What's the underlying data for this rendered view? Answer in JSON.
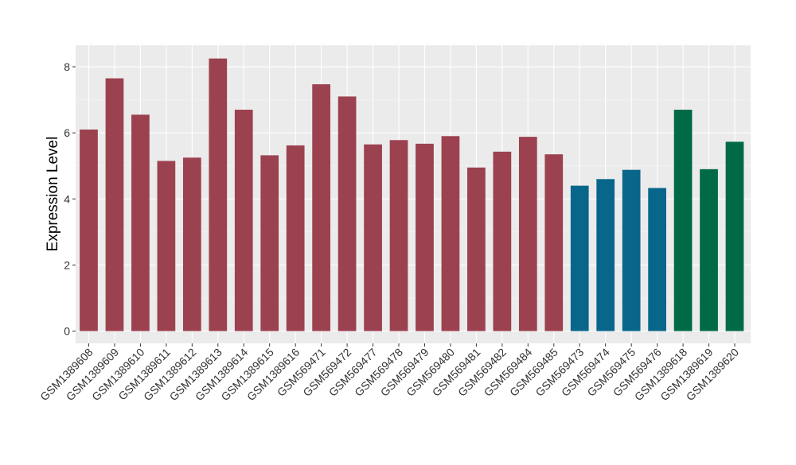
{
  "chart_data": {
    "type": "bar",
    "title": "",
    "xlabel": "",
    "ylabel": "Expression Level",
    "ylim": [
      0,
      8.6
    ],
    "yticks": [
      0,
      2,
      4,
      6,
      8
    ],
    "grid": true,
    "legend": "none",
    "categories": [
      "GSM1389608",
      "GSM1389609",
      "GSM1389610",
      "GSM1389611",
      "GSM1389612",
      "GSM1389613",
      "GSM1389614",
      "GSM1389615",
      "GSM1389616",
      "GSM569471",
      "GSM569472",
      "GSM569477",
      "GSM569478",
      "GSM569479",
      "GSM569480",
      "GSM569481",
      "GSM569482",
      "GSM569484",
      "GSM569485",
      "GSM569473",
      "GSM569474",
      "GSM569475",
      "GSM569476",
      "GSM1389618",
      "GSM1389619",
      "GSM1389620"
    ],
    "values": [
      6.1,
      7.65,
      6.55,
      5.15,
      5.25,
      8.25,
      6.7,
      5.32,
      5.62,
      7.47,
      7.1,
      5.65,
      5.78,
      5.67,
      5.9,
      4.95,
      5.43,
      5.88,
      5.35,
      4.4,
      4.6,
      4.88,
      4.33,
      6.7,
      4.9,
      5.73
    ],
    "bar_colors": [
      "#9c4150",
      "#9c4150",
      "#9c4150",
      "#9c4150",
      "#9c4150",
      "#9c4150",
      "#9c4150",
      "#9c4150",
      "#9c4150",
      "#9c4150",
      "#9c4150",
      "#9c4150",
      "#9c4150",
      "#9c4150",
      "#9c4150",
      "#9c4150",
      "#9c4150",
      "#9c4150",
      "#9c4150",
      "#08668b",
      "#08668b",
      "#08668b",
      "#08668b",
      "#006a47",
      "#006a47",
      "#006a47"
    ],
    "panel_background": "#ebebeb"
  }
}
